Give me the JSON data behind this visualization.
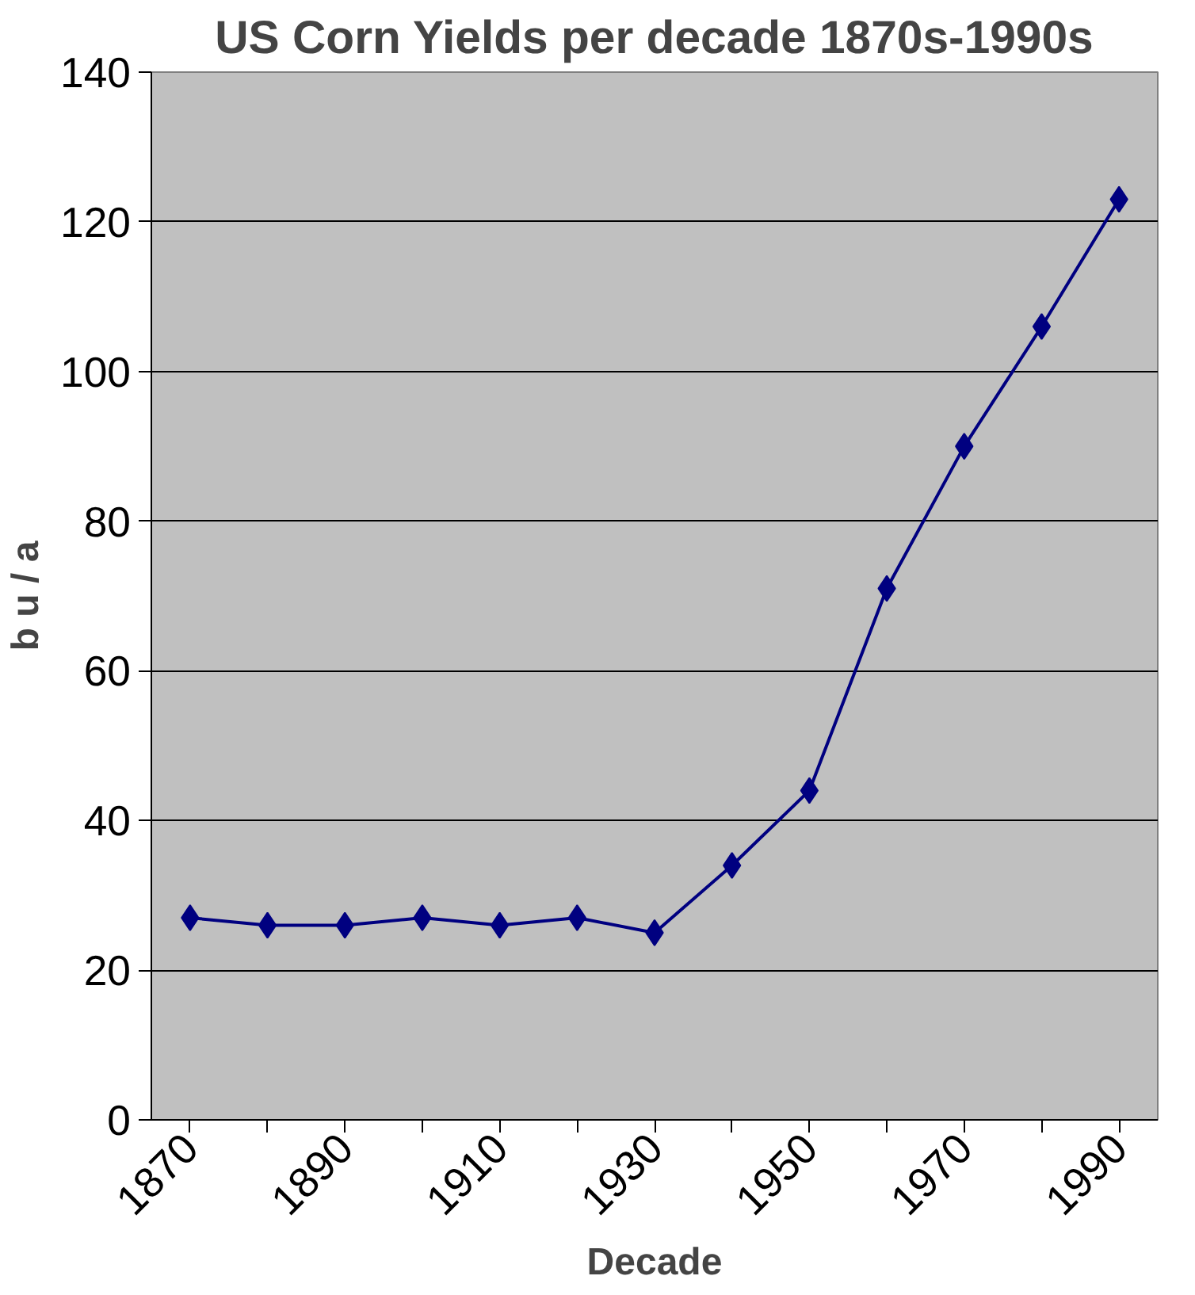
{
  "chart_data": {
    "type": "line",
    "title": "US Corn Yields per decade 1870s-1990s",
    "xlabel": "Decade",
    "ylabel": "b u / a",
    "categories": [
      "1870",
      null,
      "1890",
      null,
      "1910",
      null,
      "1930",
      null,
      "1950",
      null,
      "1970",
      null,
      "1990"
    ],
    "series": [
      {
        "color": "#000080",
        "values": [
          27,
          26,
          26,
          27,
          26,
          27,
          25,
          34,
          44,
          71,
          90,
          106,
          123
        ]
      }
    ],
    "ylim": [
      0,
      140
    ],
    "yticks": [
      0,
      20,
      40,
      60,
      80,
      100,
      120,
      140
    ],
    "grid": "y",
    "marker": "diamond",
    "line_style": "solid"
  }
}
